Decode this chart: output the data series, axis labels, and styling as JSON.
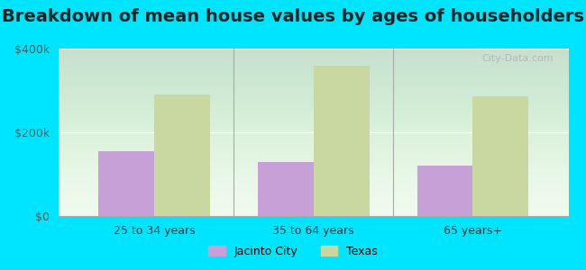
{
  "title": "Breakdown of mean house values by ages of householders",
  "categories": [
    "25 to 34 years",
    "35 to 64 years",
    "65 years+"
  ],
  "jacinto_city_values": [
    155000,
    130000,
    120000
  ],
  "texas_values": [
    290000,
    360000,
    285000
  ],
  "jacinto_city_color": "#c8a0d8",
  "texas_color": "#c8d8a0",
  "background_color": "#00e5ff",
  "ylim": [
    0,
    400000
  ],
  "yticks": [
    0,
    200000,
    400000
  ],
  "ytick_labels": [
    "$0",
    "$200k",
    "$400k"
  ],
  "title_fontsize": 14,
  "legend_labels": [
    "Jacinto City",
    "Texas"
  ],
  "bar_width": 0.35,
  "watermark": "City-Data.com"
}
